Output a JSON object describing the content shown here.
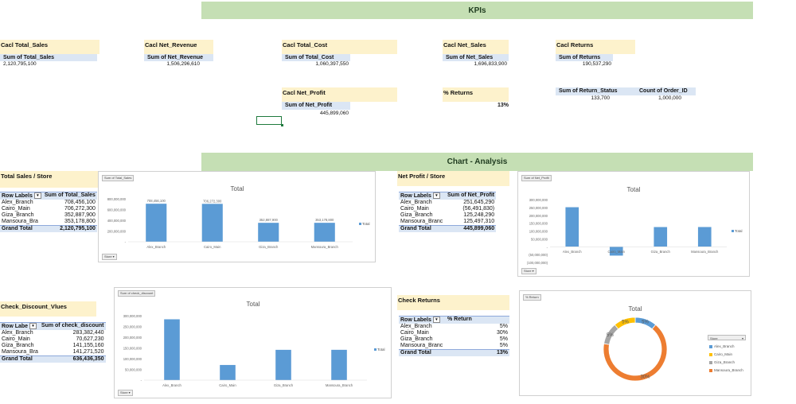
{
  "kpis_banner": "KPIs",
  "analysis_banner": "Chart - Analysis",
  "kpi": {
    "total_sales": {
      "caption": "Cacl  Total_Sales",
      "header": "Sum of Total_Sales",
      "value": "2,120,795,100"
    },
    "net_revenue": {
      "caption": "Cacl  Net_Revenue",
      "header": "Sum of Net_Revenue",
      "value": "1,506,296,610"
    },
    "total_cost": {
      "caption": "Cacl  Total_Cost",
      "header": "Sum of Total_Cost",
      "value": "1,060,397,550"
    },
    "net_sales": {
      "caption": "Cacl  Net_Sales",
      "header": "Sum of Net_Sales",
      "value": "1,696,833,900"
    },
    "returns": {
      "caption": "Cacl  Returns",
      "header": "Sum of Returns",
      "value": "190,537,290"
    },
    "net_profit": {
      "caption": "Cacl  Net_Profit",
      "header": "Sum of Net_Profit",
      "value": "445,899,060"
    },
    "pct_returns": {
      "caption": "% Returns",
      "value": "13%"
    },
    "return_status": {
      "header": "Sum of Return_Status",
      "value": "133,700"
    },
    "order_count": {
      "header": "Count of Order_ID",
      "value": "1,000,000"
    }
  },
  "sales_store": {
    "caption": "Total Sales / Store",
    "col1": "Row Labels",
    "col2": "Sum of Total_Sales",
    "rows": [
      {
        "label": "Alex_Branch",
        "value": "708,456,100"
      },
      {
        "label": "Cairo_Main",
        "value": "706,272,300"
      },
      {
        "label": "Giza_Branch",
        "value": "352,887,900"
      },
      {
        "label": "Mansoura_Bra",
        "value": "353,178,800"
      }
    ],
    "total_label": "Grand Total",
    "total_value": "2,120,795,100"
  },
  "profit_store": {
    "caption": "Net Profit / Store",
    "col1": "Row Labels",
    "col2": "Sum of Net_Profit",
    "rows": [
      {
        "label": "Alex_Branch",
        "value": "251,645,290"
      },
      {
        "label": "Cairo_Main",
        "value": "(56,491,830)"
      },
      {
        "label": "Giza_Branch",
        "value": "125,248,290"
      },
      {
        "label": "Mansoura_Branc",
        "value": "125,497,310"
      }
    ],
    "total_label": "Grand Total",
    "total_value": "445,899,060"
  },
  "discount_store": {
    "caption": "Check_Discount_Vlues",
    "col1": "Row Labe",
    "col2": "Sum of check_discount",
    "rows": [
      {
        "label": "Alex_Branch",
        "value": "283,382,440"
      },
      {
        "label": "Cairo_Main",
        "value": "70,627,230"
      },
      {
        "label": "Giza_Branch",
        "value": "141,155,160"
      },
      {
        "label": "Mansoura_Bra",
        "value": "141,271,520"
      }
    ],
    "total_label": "Grand Total",
    "total_value": "636,436,350"
  },
  "returns_store": {
    "caption": "Check Returns",
    "col1": "Row Labels",
    "col2": "% Return",
    "rows": [
      {
        "label": "Alex_Branch",
        "value": "5%"
      },
      {
        "label": "Cairo_Main",
        "value": "30%"
      },
      {
        "label": "Giza_Branch",
        "value": "5%"
      },
      {
        "label": "Mansoura_Branc",
        "value": "5%"
      }
    ],
    "total_label": "Grand Total",
    "total_value": "13%"
  },
  "charts": {
    "sales": {
      "btn": "Sum of Total_Sales",
      "store_btn": "Store",
      "legend": "Total"
    },
    "profit": {
      "btn": "Sum of Net_Profit",
      "store_btn": "Store",
      "legend": "Total"
    },
    "discount": {
      "btn": "Sum of check_discount",
      "store_btn": "Store",
      "legend": "Total"
    },
    "returns": {
      "btn": "% Return",
      "legend_title": "Store",
      "legend_items": [
        "Alex_Branch",
        "Cairo_Main",
        "Giza_Branch",
        "Mansoura_Branch"
      ]
    }
  },
  "colors": {
    "bar": "#5b9bd5",
    "pie": [
      "#5b9bd5",
      "#ed7d31",
      "#a5a5a5",
      "#ffc000"
    ],
    "banner": "#c5dfb4",
    "caption": "#fdf2cc"
  },
  "chart_data": [
    {
      "type": "bar",
      "title": "Total",
      "categories": [
        "Alex_Branch",
        "Cairo_Main",
        "Giza_Branch",
        "Mansoura_Branch"
      ],
      "series": [
        {
          "name": "Total",
          "values": [
            708456100,
            706272300,
            352887900,
            353178800
          ]
        }
      ],
      "data_labels": [
        "708,456,100",
        "706,272,300",
        "352,887,900",
        "353,178,800"
      ],
      "yticks": [
        "800,000,000",
        "600,000,000",
        "400,000,000",
        "200,000,000",
        "-"
      ],
      "ylim": [
        0,
        800000000
      ]
    },
    {
      "type": "bar",
      "title": "Total",
      "categories": [
        "Alex_Branch",
        "Cairo_Main",
        "Giza_Branch",
        "Mansoura_Branch"
      ],
      "series": [
        {
          "name": "Total",
          "values": [
            251645290,
            -56491830,
            125248290,
            125497310
          ]
        }
      ],
      "yticks": [
        "300,000,000",
        "250,000,000",
        "200,000,000",
        "150,000,000",
        "100,000,000",
        "50,000,000",
        "-",
        "(50,000,000)",
        "(100,000,000)"
      ],
      "ylim": [
        -100000000,
        300000000
      ]
    },
    {
      "type": "bar",
      "title": "Total",
      "categories": [
        "Alex_Branch",
        "Cairo_Main",
        "Giza_Branch",
        "Mansoura_Branch"
      ],
      "series": [
        {
          "name": "Total",
          "values": [
            283382440,
            70627230,
            141155160,
            141271520
          ]
        }
      ],
      "yticks": [
        "300,000,000",
        "250,000,000",
        "200,000,000",
        "150,000,000",
        "100,000,000",
        "50,000,000",
        "-"
      ],
      "ylim": [
        0,
        300000000
      ]
    },
    {
      "type": "pie",
      "title": "Total",
      "categories": [
        "Alex_Branch",
        "Cairo_Main",
        "Giza_Branch",
        "Mansoura_Branch"
      ],
      "values": [
        5,
        30,
        5,
        5
      ],
      "data_labels": [
        "5%",
        "30%",
        "5%",
        "5%"
      ]
    }
  ]
}
